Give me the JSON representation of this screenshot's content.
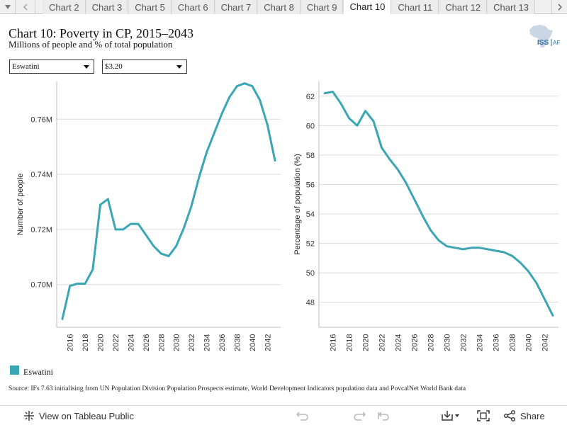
{
  "tabs": {
    "prev_icon": "triangle-down-icon",
    "items": [
      {
        "label": "Chart 2"
      },
      {
        "label": "Chart 3"
      },
      {
        "label": "Chart 5"
      },
      {
        "label": "Chart 6"
      },
      {
        "label": "Chart 7"
      },
      {
        "label": "Chart 8"
      },
      {
        "label": "Chart 9"
      },
      {
        "label": "Chart 10",
        "active": true
      },
      {
        "label": "Chart 11"
      },
      {
        "label": "Chart 12"
      },
      {
        "label": "Chart 13"
      }
    ]
  },
  "header": {
    "title": "Chart 10: Poverty in CP, 2015–2043",
    "subtitle": "Millions of people and % of total population",
    "logo_text": "ISS",
    "logo_suffix": "AF"
  },
  "filters": {
    "country": "Eswatini",
    "threshold": "$3.20"
  },
  "legend": {
    "label": "Eswatini",
    "color": "#3aa6b3"
  },
  "source": "Source: IFs 7.63 initialising from UN Population Division Population Prospects estimate, World Development Indicators population data and PovcalNet World Bank data",
  "toolbar": {
    "view_label": "View on Tableau Public",
    "share_label": "Share"
  },
  "chart_data": [
    {
      "type": "line",
      "ylabel": "Number of people",
      "xlabel": "",
      "x": [
        2015,
        2016,
        2017,
        2018,
        2019,
        2020,
        2021,
        2022,
        2023,
        2024,
        2025,
        2026,
        2027,
        2028,
        2029,
        2030,
        2031,
        2032,
        2033,
        2034,
        2035,
        2036,
        2037,
        2038,
        2039,
        2040,
        2041,
        2042,
        2043
      ],
      "x_ticks": [
        "2016",
        "2018",
        "2020",
        "2022",
        "2024",
        "2026",
        "2028",
        "2030",
        "2032",
        "2034",
        "2036",
        "2038",
        "2040",
        "2042"
      ],
      "y_ticks": [
        "0.70M",
        "0.72M",
        "0.74M",
        "0.76M"
      ],
      "ylim": [
        0.6845,
        0.7737
      ],
      "grid": true,
      "series": [
        {
          "name": "Eswatini",
          "color": "#3aa6b3",
          "values": [
            0.6875,
            0.6995,
            0.7003,
            0.7003,
            0.7055,
            0.729,
            0.731,
            0.72,
            0.72,
            0.722,
            0.722,
            0.718,
            0.714,
            0.7112,
            0.7103,
            0.714,
            0.7205,
            0.7285,
            0.739,
            0.748,
            0.755,
            0.762,
            0.768,
            0.772,
            0.773,
            0.772,
            0.767,
            0.758,
            0.745
          ]
        }
      ]
    },
    {
      "type": "line",
      "ylabel": "Percentage of population (%)",
      "xlabel": "",
      "x": [
        2015,
        2016,
        2017,
        2018,
        2019,
        2020,
        2021,
        2022,
        2023,
        2024,
        2025,
        2026,
        2027,
        2028,
        2029,
        2030,
        2031,
        2032,
        2033,
        2034,
        2035,
        2036,
        2037,
        2038,
        2039,
        2040,
        2041,
        2042,
        2043
      ],
      "x_ticks": [
        "2016",
        "2018",
        "2020",
        "2022",
        "2024",
        "2026",
        "2028",
        "2030",
        "2032",
        "2034",
        "2036",
        "2038",
        "2040",
        "2042"
      ],
      "y_ticks": [
        "48",
        "50",
        "52",
        "54",
        "56",
        "58",
        "60",
        "62"
      ],
      "ylim": [
        46.3,
        63.0
      ],
      "grid": true,
      "series": [
        {
          "name": "Eswatini",
          "color": "#3aa6b3",
          "values": [
            62.2,
            62.3,
            61.5,
            60.5,
            60.0,
            61.0,
            60.3,
            58.5,
            57.7,
            57.0,
            56.1,
            55.0,
            53.9,
            52.9,
            52.2,
            51.8,
            51.7,
            51.6,
            51.7,
            51.7,
            51.6,
            51.5,
            51.4,
            51.15,
            50.7,
            50.1,
            49.3,
            48.2,
            47.1
          ]
        }
      ]
    }
  ]
}
